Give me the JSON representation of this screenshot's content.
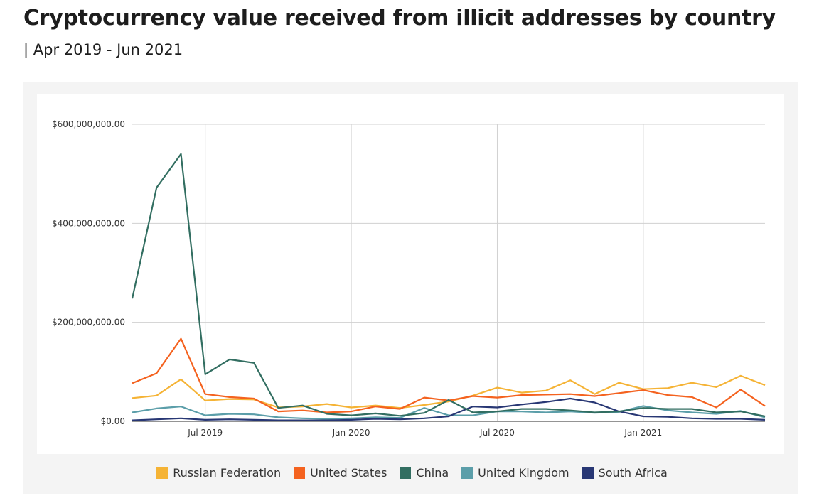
{
  "title": "Cryptocurrency value received from illicit addresses by country",
  "subtitle": "| Apr 2019 - Jun 2021",
  "chart_data": {
    "type": "line",
    "title": "Cryptocurrency value received from illicit addresses by country",
    "subtitle": "| Apr 2019 - Jun 2021",
    "xlabel": "",
    "ylabel": "",
    "x": [
      "2019-04",
      "2019-05",
      "2019-06",
      "2019-07",
      "2019-08",
      "2019-09",
      "2019-10",
      "2019-11",
      "2019-12",
      "2020-01",
      "2020-02",
      "2020-03",
      "2020-04",
      "2020-05",
      "2020-06",
      "2020-07",
      "2020-08",
      "2020-09",
      "2020-10",
      "2020-11",
      "2020-12",
      "2021-01",
      "2021-02",
      "2021-03",
      "2021-04",
      "2021-05",
      "2021-06"
    ],
    "x_ticks": [
      "Jul 2019",
      "Jan 2020",
      "Jul 2020",
      "Jan 2021"
    ],
    "y_ticks": [
      "$0.00",
      "$200,000,000.00",
      "$400,000,000.00",
      "$600,000,000.00"
    ],
    "ylim": [
      0,
      600000000
    ],
    "grid": true,
    "legend_position": "bottom",
    "series": [
      {
        "name": "Russian Federation",
        "color": "#f5b335",
        "values": [
          47000000,
          52000000,
          85000000,
          42000000,
          45000000,
          44000000,
          28000000,
          30000000,
          35000000,
          28000000,
          32000000,
          27000000,
          33000000,
          40000000,
          52000000,
          68000000,
          58000000,
          62000000,
          83000000,
          55000000,
          78000000,
          65000000,
          67000000,
          78000000,
          69000000,
          92000000,
          73000000
        ]
      },
      {
        "name": "United States",
        "color": "#f4621f",
        "values": [
          77000000,
          97000000,
          167000000,
          55000000,
          49000000,
          46000000,
          20000000,
          22000000,
          18000000,
          20000000,
          30000000,
          25000000,
          48000000,
          42000000,
          51000000,
          48000000,
          53000000,
          54000000,
          55000000,
          51000000,
          57000000,
          63000000,
          53000000,
          49000000,
          28000000,
          64000000,
          31000000
        ]
      },
      {
        "name": "China",
        "color": "#326e61",
        "values": [
          248000000,
          472000000,
          540000000,
          95000000,
          125000000,
          118000000,
          27000000,
          32000000,
          15000000,
          12000000,
          16000000,
          11000000,
          17000000,
          43000000,
          18000000,
          20000000,
          25000000,
          25000000,
          22000000,
          18000000,
          20000000,
          27000000,
          25000000,
          25000000,
          18000000,
          20000000,
          10000000
        ]
      },
      {
        "name": "United Kingdom",
        "color": "#5b9ea9",
        "values": [
          18000000,
          26000000,
          30000000,
          12000000,
          15000000,
          14000000,
          8000000,
          6000000,
          5000000,
          6000000,
          8000000,
          7000000,
          27000000,
          12000000,
          12000000,
          20000000,
          20000000,
          18000000,
          20000000,
          17000000,
          19000000,
          31000000,
          22000000,
          18000000,
          15000000,
          21000000,
          8000000
        ]
      },
      {
        "name": "South Africa",
        "color": "#283774",
        "values": [
          2000000,
          4000000,
          6000000,
          3000000,
          4000000,
          3000000,
          2000000,
          2000000,
          2000000,
          3000000,
          5000000,
          4000000,
          6000000,
          10000000,
          30000000,
          28000000,
          34000000,
          39000000,
          46000000,
          38000000,
          20000000,
          10000000,
          9000000,
          6000000,
          5000000,
          5000000,
          3000000
        ]
      }
    ]
  }
}
